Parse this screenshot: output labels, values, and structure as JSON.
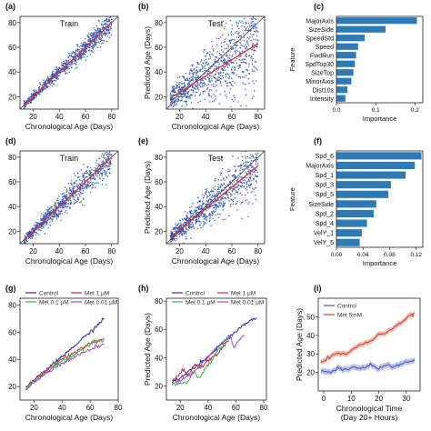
{
  "chart_data": [
    {
      "panel": "a",
      "type": "scatter",
      "title": "Train",
      "xlabel": "Chronological Age (Days)",
      "ylabel": "",
      "xlim": [
        10,
        85
      ],
      "ylim": [
        10,
        85
      ],
      "xticks": [
        20,
        40,
        60,
        80
      ],
      "yticks": [
        20,
        40,
        60,
        80
      ],
      "diagonal": true,
      "trend": [
        [
          13,
          13
        ],
        [
          80,
          80
        ]
      ],
      "point_color": "#2a4fb0",
      "trend_color": "#e0332f",
      "spread": "tight"
    },
    {
      "panel": "b",
      "type": "scatter",
      "title": "Test",
      "xlabel": "Chronological Age (Days)",
      "ylabel": "Predicted Age (Days)",
      "xlim": [
        10,
        85
      ],
      "ylim": [
        10,
        85
      ],
      "xticks": [
        20,
        40,
        60,
        80
      ],
      "yticks": [
        20,
        40,
        60,
        80
      ],
      "diagonal": true,
      "trend": [
        [
          13,
          19
        ],
        [
          80,
          63
        ]
      ],
      "point_color": "#2a4fb0",
      "trend_color": "#e0332f",
      "spread": "wide"
    },
    {
      "panel": "c",
      "type": "bar",
      "orientation": "horizontal",
      "xlabel": "Importance",
      "ylabel": "Feature",
      "xlim": [
        0,
        0.22
      ],
      "xticks": [
        "0.0",
        "0.1",
        "0.2"
      ],
      "tick_values": [
        0,
        0.1,
        0.2
      ],
      "categories": [
        "MajorAxis",
        "SizeSide",
        "SpeedStd",
        "Speed",
        "FwdRun",
        "SpdTop30",
        "SizeTop",
        "MinorAxis",
        "Dist10s",
        "Intensity"
      ],
      "values": [
        0.205,
        0.125,
        0.072,
        0.055,
        0.05,
        0.047,
        0.043,
        0.038,
        0.028,
        0.023
      ],
      "bar_color": "#2e7ab8"
    },
    {
      "panel": "d",
      "type": "scatter",
      "title": "Train",
      "xlabel": "Chronological Age (Days)",
      "ylabel": "",
      "xlim": [
        10,
        85
      ],
      "ylim": [
        10,
        85
      ],
      "xticks": [
        20,
        40,
        60,
        80
      ],
      "yticks": [
        20,
        40,
        60,
        80
      ],
      "diagonal": true,
      "trend": [
        [
          13,
          13
        ],
        [
          80,
          80
        ]
      ],
      "point_color": "#2a4fb0",
      "trend_color": "#e0332f",
      "spread": "medium"
    },
    {
      "panel": "e",
      "type": "scatter",
      "title": "Test",
      "xlabel": "Chronological Age (Days)",
      "ylabel": "Predicted Age (Days)",
      "xlim": [
        10,
        85
      ],
      "ylim": [
        10,
        85
      ],
      "xticks": [
        20,
        40,
        60,
        80
      ],
      "yticks": [
        20,
        40,
        60,
        80
      ],
      "diagonal": true,
      "trend": [
        [
          13,
          15
        ],
        [
          80,
          73
        ]
      ],
      "point_color": "#2a4fb0",
      "trend_color": "#e0332f",
      "spread": "medium-wide"
    },
    {
      "panel": "f",
      "type": "bar",
      "orientation": "horizontal",
      "xlabel": "Importance",
      "ylabel": "Feature",
      "xlim": [
        0,
        0.13
      ],
      "xticks": [
        "0.00",
        "0.04",
        "0.08",
        "0.12"
      ],
      "tick_values": [
        0,
        0.04,
        0.08,
        0.12
      ],
      "categories": [
        "Spd_6",
        "MajorAxis",
        "Spd_1",
        "Spd_3",
        "Spd_5",
        "SizeSide",
        "Spd_2",
        "Spd_4",
        "VelY_1",
        "VelY_5"
      ],
      "values": [
        0.128,
        0.118,
        0.104,
        0.082,
        0.078,
        0.06,
        0.056,
        0.046,
        0.038,
        0.035
      ],
      "bar_color": "#2e7ab8"
    },
    {
      "panel": "g",
      "type": "line",
      "xlabel": "Chronological Age (Days)",
      "ylabel": "",
      "xlim": [
        10,
        80
      ],
      "ylim": [
        10,
        85
      ],
      "xticks": [
        20,
        40,
        60,
        80
      ],
      "yticks": [
        20,
        40,
        60,
        80
      ],
      "legend": "top-left",
      "series": [
        {
          "name": "Control",
          "color": "#2c2f9a",
          "points": [
            [
              14,
              19
            ],
            [
              20,
              24
            ],
            [
              30,
              33
            ],
            [
              40,
              42
            ],
            [
              50,
              51
            ],
            [
              60,
              60
            ],
            [
              70,
              70
            ]
          ]
        },
        {
          "name": "Met 1 μM",
          "color": "#d7263d",
          "points": [
            [
              14,
              19
            ],
            [
              20,
              25
            ],
            [
              30,
              33
            ],
            [
              40,
              40
            ],
            [
              50,
              46
            ],
            [
              55,
              49
            ],
            [
              62,
              53
            ],
            [
              70,
              55
            ]
          ]
        },
        {
          "name": "Met 0.1 μM",
          "color": "#3fb14a",
          "points": [
            [
              15,
              19
            ],
            [
              20,
              24
            ],
            [
              30,
              32
            ],
            [
              40,
              39
            ],
            [
              50,
              44
            ],
            [
              55,
              48
            ],
            [
              62,
              52
            ],
            [
              70,
              54
            ]
          ]
        },
        {
          "name": "Met 0.01 μM",
          "color": "#9b4fc2",
          "points": [
            [
              14,
              18
            ],
            [
              20,
              23
            ],
            [
              30,
              31
            ],
            [
              40,
              37
            ],
            [
              50,
              42
            ],
            [
              55,
              45
            ],
            [
              62,
              48
            ],
            [
              70,
              51
            ]
          ]
        }
      ]
    },
    {
      "panel": "h",
      "type": "line",
      "xlabel": "Chronological Age (Days)",
      "ylabel": "Predicted Age (Days)",
      "xlim": [
        10,
        82
      ],
      "ylim": [
        10,
        82
      ],
      "xticks": [
        20,
        40,
        60,
        80
      ],
      "yticks": [
        20,
        40,
        60,
        80
      ],
      "legend": "top-left",
      "series": [
        {
          "name": "Control",
          "color": "#2c2f9a",
          "points": [
            [
              14,
              22
            ],
            [
              20,
              26
            ],
            [
              30,
              33
            ],
            [
              40,
              40
            ],
            [
              50,
              50
            ],
            [
              55,
              54
            ],
            [
              62,
              60
            ],
            [
              70,
              66
            ],
            [
              75,
              68
            ]
          ]
        },
        {
          "name": "Met 1 μM",
          "color": "#d7263d",
          "points": [
            [
              14,
              24
            ],
            [
              18,
              27
            ],
            [
              22,
              31
            ],
            [
              26,
              27
            ],
            [
              30,
              35
            ],
            [
              35,
              33
            ],
            [
              40,
              38
            ],
            [
              45,
              41
            ],
            [
              50,
              47
            ],
            [
              55,
              52
            ]
          ]
        },
        {
          "name": "Met 0.1 μM",
          "color": "#3fb14a",
          "points": [
            [
              14,
              21
            ],
            [
              20,
              22
            ],
            [
              26,
              23
            ],
            [
              30,
              30
            ],
            [
              34,
              25
            ],
            [
              38,
              33
            ],
            [
              42,
              36
            ],
            [
              46,
              44
            ],
            [
              50,
              48
            ],
            [
              55,
              55
            ]
          ]
        },
        {
          "name": "Met 0.01 μM",
          "color": "#9b4fc2",
          "points": [
            [
              15,
              22
            ],
            [
              20,
              24
            ],
            [
              30,
              30
            ],
            [
              40,
              41
            ],
            [
              48,
              49
            ],
            [
              52,
              53
            ],
            [
              56,
              56
            ],
            [
              58,
              48
            ],
            [
              62,
              52
            ],
            [
              66,
              56
            ]
          ]
        }
      ]
    },
    {
      "panel": "i",
      "type": "line",
      "xlabel": "Chronological Time",
      "xlabel2": "(Day 20+ Hours)",
      "ylabel": "Predicted Age (Days)",
      "xlim": [
        -2,
        35
      ],
      "ylim": [
        10,
        60
      ],
      "xticks": [
        0,
        10,
        20,
        30
      ],
      "yticks": [
        20,
        30,
        40,
        50
      ],
      "legend": "top-left",
      "series": [
        {
          "name": "Control",
          "color": "#4a55b8",
          "band_color": "#aab4e6",
          "band": 1.6,
          "points": [
            [
              -1,
              21
            ],
            [
              2,
              20
            ],
            [
              5,
              22
            ],
            [
              8,
              21.5
            ],
            [
              11,
              23
            ],
            [
              14,
              22
            ],
            [
              17,
              24
            ],
            [
              20,
              22
            ],
            [
              23,
              24
            ],
            [
              26,
              23
            ],
            [
              29,
              25
            ],
            [
              32,
              26
            ],
            [
              33,
              27
            ]
          ]
        },
        {
          "name": "Met 5mM",
          "color": "#d9402b",
          "band_color": "#f4a998",
          "band": 1.4,
          "points": [
            [
              -1,
              26
            ],
            [
              2,
              28
            ],
            [
              5,
              30
            ],
            [
              8,
              30
            ],
            [
              11,
              33
            ],
            [
              14,
              35
            ],
            [
              17,
              37
            ],
            [
              20,
              40
            ],
            [
              23,
              42
            ],
            [
              26,
              45
            ],
            [
              29,
              48
            ],
            [
              32,
              51
            ],
            [
              33,
              52
            ]
          ]
        }
      ]
    }
  ],
  "panel_labels": [
    "(a)",
    "(b)",
    "(c)",
    "(d)",
    "(e)",
    "(f)",
    "(g)",
    "(h)",
    "(i)"
  ]
}
